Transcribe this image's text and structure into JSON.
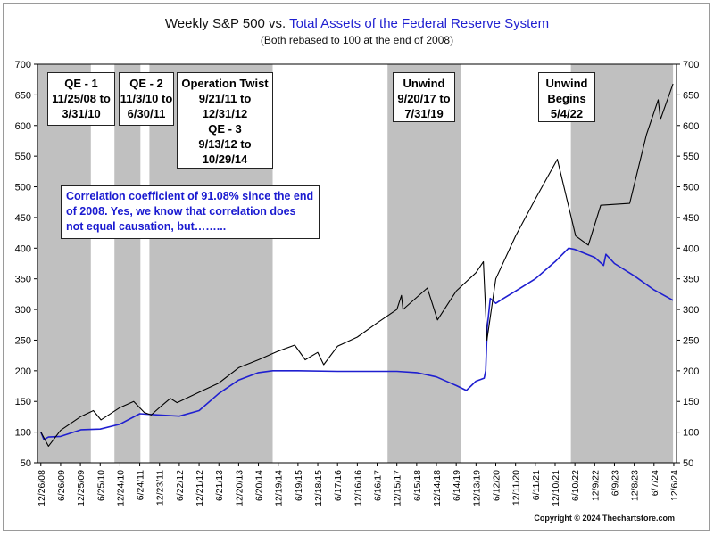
{
  "header": {
    "title_part1": "Weekly S&P 500 vs.",
    "title_part2": "Total Assets of the Federal Reserve System",
    "subtitle": "(Both rebased to 100 at the end of 2008)"
  },
  "footer": {
    "copyright": "Copyright © 2024 Thechartstore.com"
  },
  "colors": {
    "sp500": "#000000",
    "fed_assets": "#1f1fd0",
    "shading": "#c0c0c0",
    "text_blue": "#1a1ad0"
  },
  "annotations": {
    "qe1": [
      "QE - 1",
      "11/25/08 to",
      "3/31/10"
    ],
    "qe2": [
      "QE - 2",
      "11/3/10 to",
      "6/30/11"
    ],
    "twist": [
      "Operation Twist",
      "9/21/11 to",
      "12/31/12",
      "QE - 3",
      "9/13/12 to",
      "10/29/14"
    ],
    "unwind1": [
      "Unwind",
      "9/20/17 to",
      "7/31/19"
    ],
    "unwind2": [
      "Unwind",
      "Begins",
      "5/4/22"
    ],
    "correlation": "Correlation coefficient of 91.08% since the end of 2008. Yes, we know that correlation does not equal causation, but……..."
  },
  "chart_data": {
    "type": "line",
    "xlabel": "",
    "ylabel": "",
    "ylim": [
      50,
      700
    ],
    "yticks": [
      50,
      100,
      150,
      200,
      250,
      300,
      350,
      400,
      450,
      500,
      550,
      600,
      650,
      700
    ],
    "xlim": [
      "2008-11-25",
      "2024-12-31"
    ],
    "xtick_labels": [
      "12/26/08",
      "6/26/09",
      "12/25/09",
      "6/25/10",
      "12/24/10",
      "6/24/11",
      "12/23/11",
      "6/22/12",
      "12/21/12",
      "6/21/13",
      "12/20/13",
      "6/20/14",
      "12/19/14",
      "6/19/15",
      "12/18/15",
      "6/17/16",
      "12/16/16",
      "6/16/17",
      "12/15/17",
      "6/15/18",
      "12/14/18",
      "6/14/19",
      "12/13/19",
      "6/12/20",
      "12/11/20",
      "6/11/21",
      "12/10/21",
      "6/10/22",
      "12/9/22",
      "6/9/23",
      "12/8/23",
      "6/7/24",
      "12/6/24"
    ],
    "xtick_dates": [
      "2008-12-26",
      "2009-06-26",
      "2009-12-25",
      "2010-06-25",
      "2010-12-24",
      "2011-06-24",
      "2011-12-23",
      "2012-06-22",
      "2012-12-21",
      "2013-06-21",
      "2013-12-20",
      "2014-06-20",
      "2014-12-19",
      "2015-06-19",
      "2015-12-18",
      "2016-06-17",
      "2016-12-16",
      "2017-06-16",
      "2017-12-15",
      "2018-06-15",
      "2018-12-14",
      "2019-06-14",
      "2019-12-13",
      "2020-06-12",
      "2020-12-11",
      "2021-06-11",
      "2021-12-10",
      "2022-06-10",
      "2022-12-09",
      "2023-06-09",
      "2023-12-08",
      "2024-06-07",
      "2024-12-06"
    ],
    "shaded_periods": [
      {
        "start": "2008-11-25",
        "end": "2010-03-31"
      },
      {
        "start": "2010-11-03",
        "end": "2011-06-30"
      },
      {
        "start": "2011-09-21",
        "end": "2014-10-29"
      },
      {
        "start": "2017-09-20",
        "end": "2019-07-31"
      },
      {
        "start": "2022-05-04",
        "end": "2024-11-29"
      }
    ],
    "grid": false,
    "series": [
      {
        "name": "Weekly S&P 500",
        "x": [
          "2008-12-26",
          "2009-03-06",
          "2009-06-26",
          "2009-12-25",
          "2010-04-23",
          "2010-07-02",
          "2010-12-24",
          "2011-04-29",
          "2011-08-05",
          "2011-10-07",
          "2011-12-23",
          "2012-04-01",
          "2012-06-01",
          "2012-12-21",
          "2013-06-21",
          "2013-12-20",
          "2014-06-20",
          "2014-12-19",
          "2015-05-20",
          "2015-08-25",
          "2015-12-18",
          "2016-02-11",
          "2016-06-17",
          "2016-12-16",
          "2017-06-16",
          "2017-12-15",
          "2018-01-26",
          "2018-02-09",
          "2018-09-21",
          "2018-12-24",
          "2019-06-14",
          "2019-12-13",
          "2020-02-19",
          "2020-03-23",
          "2020-06-12",
          "2020-12-11",
          "2021-06-11",
          "2021-12-31",
          "2022-06-17",
          "2022-10-12",
          "2023-02-03",
          "2023-10-27",
          "2024-03-29",
          "2024-07-16",
          "2024-08-05",
          "2024-11-29"
        ],
        "y": [
          100,
          77,
          103,
          125,
          135,
          120,
          140,
          150,
          132,
          128,
          140,
          155,
          148,
          165,
          180,
          205,
          218,
          232,
          242,
          218,
          230,
          210,
          240,
          255,
          278,
          300,
          323,
          300,
          335,
          283,
          330,
          360,
          378,
          250,
          350,
          420,
          480,
          545,
          420,
          405,
          470,
          473,
          585,
          642,
          610,
          668
        ]
      },
      {
        "name": "Total Assets of the Federal Reserve System",
        "x": [
          "2008-12-26",
          "2009-01-23",
          "2009-03-06",
          "2009-06-26",
          "2010-01-01",
          "2010-06-25",
          "2010-12-24",
          "2011-06-24",
          "2011-12-23",
          "2012-06-22",
          "2012-12-21",
          "2013-06-21",
          "2013-12-20",
          "2014-06-20",
          "2014-10-29",
          "2015-06-19",
          "2016-06-17",
          "2017-06-16",
          "2017-12-15",
          "2018-06-15",
          "2018-12-14",
          "2019-06-14",
          "2019-09-15",
          "2019-12-13",
          "2020-02-26",
          "2020-03-11",
          "2020-03-25",
          "2020-04-22",
          "2020-06-12",
          "2020-08-12",
          "2020-12-11",
          "2021-06-11",
          "2021-12-10",
          "2022-04-13",
          "2022-06-10",
          "2022-12-09",
          "2023-03-01",
          "2023-03-22",
          "2023-06-09",
          "2023-12-08",
          "2024-06-07",
          "2024-11-29"
        ],
        "y": [
          100,
          88,
          92,
          93,
          104,
          105,
          113,
          130,
          128,
          126,
          135,
          163,
          185,
          197,
          200,
          200,
          199,
          199,
          199,
          197,
          190,
          176,
          168,
          183,
          188,
          200,
          270,
          318,
          310,
          317,
          330,
          350,
          378,
          400,
          398,
          385,
          372,
          390,
          375,
          355,
          332,
          315
        ]
      }
    ]
  }
}
